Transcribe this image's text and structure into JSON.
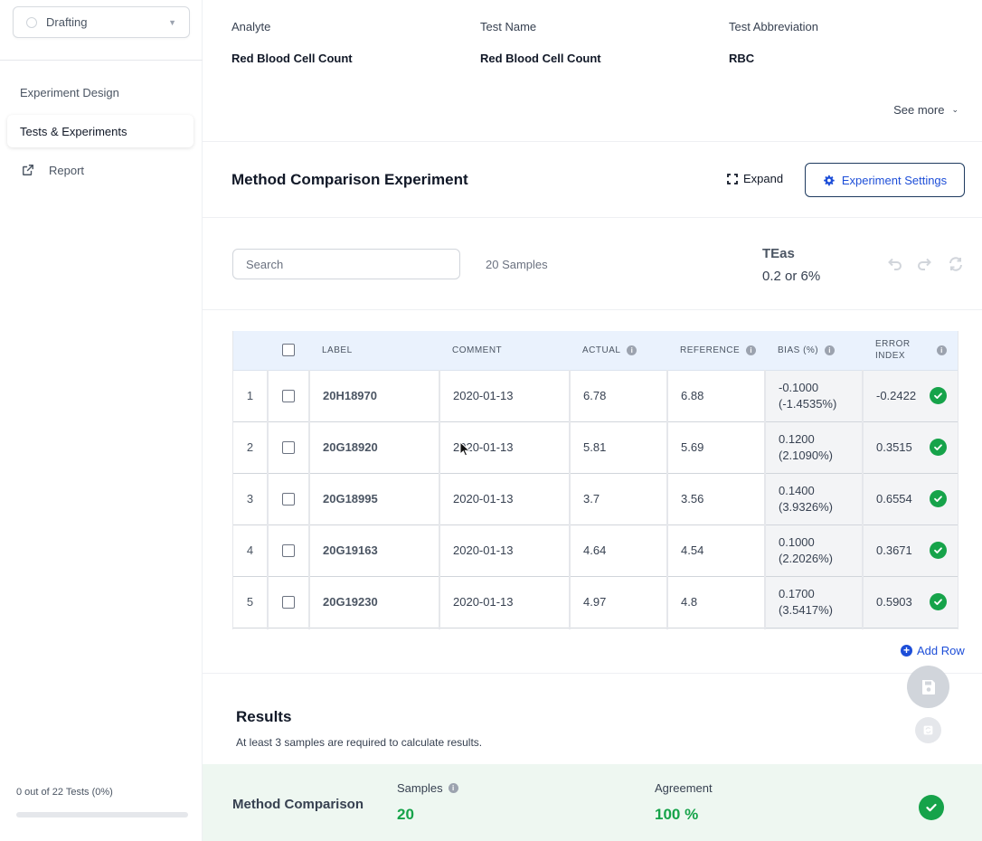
{
  "sidebar": {
    "status": {
      "label": "Drafting"
    },
    "nav": [
      {
        "label": "Experiment Design"
      },
      {
        "label": "Tests & Experiments"
      },
      {
        "label": "Report"
      }
    ],
    "progress": {
      "text": "0 out of 22 Tests (0%)",
      "fraction": 0
    }
  },
  "test_info": {
    "columns": [
      {
        "label": "Analyte",
        "value": "Red Blood Cell Count"
      },
      {
        "label": "Test Name",
        "value": "Red Blood Cell Count"
      },
      {
        "label": "Test Abbreviation",
        "value": "RBC"
      }
    ],
    "see_more": "See more"
  },
  "experiment": {
    "title": "Method Comparison Experiment",
    "expand_label": "Expand",
    "settings_label": "Experiment Settings",
    "search_placeholder": "Search",
    "samples_count": "20 Samples",
    "teas_label": "TEas",
    "teas_value": "0.2 or 6%"
  },
  "table": {
    "headers": {
      "label": "LABEL",
      "comment": "COMMENT",
      "actual": "ACTUAL",
      "reference": "REFERENCE",
      "bias": "BIAS (%)",
      "error_index_1": "ERROR",
      "error_index_2": "INDEX"
    },
    "rows": [
      {
        "num": "1",
        "label": "20H18970",
        "comment": "2020-01-13",
        "actual": "6.78",
        "reference": "6.88",
        "bias": "-0.1000 (-1.4535%)",
        "error_index": "-0.2422"
      },
      {
        "num": "2",
        "label": "20G18920",
        "comment": "2020-01-13",
        "actual": "5.81",
        "reference": "5.69",
        "bias": "0.1200 (2.1090%)",
        "error_index": "0.3515"
      },
      {
        "num": "3",
        "label": "20G18995",
        "comment": "2020-01-13",
        "actual": "3.7",
        "reference": "3.56",
        "bias": "0.1400 (3.9326%)",
        "error_index": "0.6554"
      },
      {
        "num": "4",
        "label": "20G19163",
        "comment": "2020-01-13",
        "actual": "4.64",
        "reference": "4.54",
        "bias": "0.1000 (2.2026%)",
        "error_index": "0.3671"
      },
      {
        "num": "5",
        "label": "20G19230",
        "comment": "2020-01-13",
        "actual": "4.97",
        "reference": "4.8",
        "bias": "0.1700 (3.5417%)",
        "error_index": "0.5903"
      }
    ],
    "add_row_label": "Add Row"
  },
  "results": {
    "title": "Results",
    "message": "At least 3 samples are required to calculate results.",
    "band_label": "Method Comparison",
    "samples_label": "Samples",
    "samples_value": "20",
    "agreement_label": "Agreement",
    "agreement_value": "100 %"
  },
  "colors": {
    "accent": "#1d4ed8",
    "success": "#16a34a",
    "header_bg": "#eaf2fd",
    "band_bg": "#eef7f1"
  },
  "icons": [
    "chevron-down-icon",
    "external-link-icon",
    "expand-icon",
    "gear-icon",
    "undo-icon",
    "redo-icon",
    "refresh-icon",
    "info-icon",
    "check-circle-icon",
    "plus-circle-icon",
    "save-icon"
  ]
}
